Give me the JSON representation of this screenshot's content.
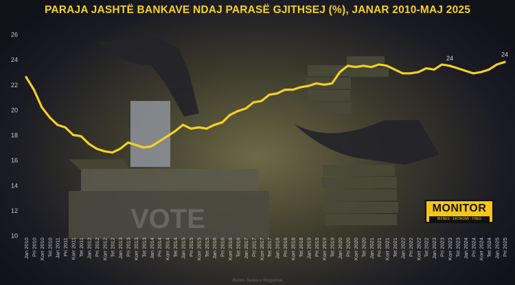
{
  "title": "PARAJA JASHTË BANKAVE NDAJ PARASË GJITHSEJ (%), JANAR 2010-MAJ 2025",
  "source": "Burimi: Banka e Shqipërisë",
  "logo": {
    "name": "MONITOR",
    "tagline": "BIZNES · EKONOMI · TREG"
  },
  "background_text": "VOTE",
  "colors": {
    "line": "#f5d21f",
    "title": "#f5d21f",
    "axis_text": "#c8c8c8",
    "logo_bg": "#f5c518"
  },
  "chart_data": {
    "type": "line",
    "title": "PARAJA JASHTË BANKAVE NDAJ PARASË GJITHSEJ (%), JANAR 2010-MAJ 2025",
    "ylim": [
      10,
      26
    ],
    "yticks": [
      10,
      12,
      14,
      16,
      18,
      20,
      22,
      24,
      26
    ],
    "grid": false,
    "categories": [
      "Jan 2010",
      "Pri 2010",
      "Korr 2010",
      "Tet 2010",
      "Jan 2011",
      "Pri 2011",
      "Korr 2011",
      "Tet 2011",
      "Jan 2012",
      "Pri 2012",
      "Korr 2012",
      "Tet 2012",
      "Jan 2013",
      "Pri 2013",
      "Korr 2013",
      "Tet 2013",
      "Jan 2014",
      "Pri 2014",
      "Korr 2014",
      "Tet 2014",
      "Jan 2015",
      "Pri 2015",
      "Korr 2015",
      "Tet 2015",
      "Jan 2016",
      "Pri 2016",
      "Korr 2016",
      "Tet 2016",
      "Jan 2017",
      "Pri 2017",
      "Korr 2017",
      "Tet 2017",
      "Jan 2018",
      "Pri 2018",
      "Korr 2018",
      "Tet 2018",
      "Jan 2019",
      "Pri 2019",
      "Korr 2019",
      "Tet 2019",
      "Jan 2020",
      "Pri 2020",
      "Korr 2020",
      "Tet 2020",
      "Jan 2021",
      "Pri 2021",
      "Korr 2021",
      "Tet 2021",
      "Jan 2022",
      "Pri 2022",
      "Korr 2022",
      "Tet 2022",
      "Jan 2023",
      "Pri 2023",
      "Korr 2023",
      "Tet 2023",
      "Jan 2024",
      "Pri 2024",
      "Korr 2024",
      "Tet 2024",
      "Jan 2025",
      "Pri 2025"
    ],
    "values": [
      22.6,
      21.6,
      20.2,
      19.4,
      18.8,
      18.6,
      18.0,
      17.9,
      17.3,
      16.9,
      16.7,
      16.6,
      16.9,
      17.4,
      17.2,
      17.0,
      17.1,
      17.5,
      17.9,
      18.3,
      18.8,
      18.5,
      18.6,
      18.5,
      18.8,
      19.0,
      19.6,
      19.9,
      20.1,
      20.6,
      20.7,
      21.2,
      21.3,
      21.6,
      21.6,
      21.8,
      21.9,
      22.1,
      22.0,
      22.1,
      23.0,
      23.5,
      23.4,
      23.5,
      23.4,
      23.6,
      23.5,
      23.2,
      22.9,
      22.9,
      23.0,
      23.3,
      23.2,
      23.6,
      23.5,
      23.3,
      23.1,
      22.9,
      23.0,
      23.2,
      23.6,
      23.8
    ],
    "annotations": [
      {
        "category": "Korr 2023",
        "value": 24,
        "label": "24"
      },
      {
        "category": "Pri 2025",
        "value": 24,
        "label": "24"
      }
    ]
  }
}
